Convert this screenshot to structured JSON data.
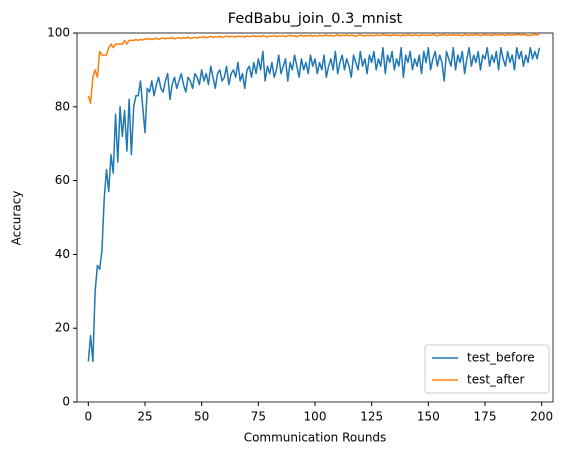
{
  "chart_data": {
    "type": "line",
    "title": "FedBabu_join_0.3_mnist",
    "xlabel": "Communication Rounds",
    "ylabel": "Accuracy",
    "xlim": [
      -5,
      205
    ],
    "ylim": [
      0,
      100
    ],
    "xticks": [
      0,
      25,
      50,
      75,
      100,
      125,
      150,
      175,
      200
    ],
    "yticks": [
      0,
      20,
      40,
      60,
      80,
      100
    ],
    "grid": false,
    "legend_position": "lower right",
    "x": [
      0,
      1,
      2,
      3,
      4,
      5,
      6,
      7,
      8,
      9,
      10,
      11,
      12,
      13,
      14,
      15,
      16,
      17,
      18,
      19,
      20,
      21,
      22,
      23,
      24,
      25,
      26,
      27,
      28,
      29,
      30,
      31,
      32,
      33,
      34,
      35,
      36,
      37,
      38,
      39,
      40,
      41,
      42,
      43,
      44,
      45,
      46,
      47,
      48,
      49,
      50,
      51,
      52,
      53,
      54,
      55,
      56,
      57,
      58,
      59,
      60,
      61,
      62,
      63,
      64,
      65,
      66,
      67,
      68,
      69,
      70,
      71,
      72,
      73,
      74,
      75,
      76,
      77,
      78,
      79,
      80,
      81,
      82,
      83,
      84,
      85,
      86,
      87,
      88,
      89,
      90,
      91,
      92,
      93,
      94,
      95,
      96,
      97,
      98,
      99,
      100,
      101,
      102,
      103,
      104,
      105,
      106,
      107,
      108,
      109,
      110,
      111,
      112,
      113,
      114,
      115,
      116,
      117,
      118,
      119,
      120,
      121,
      122,
      123,
      124,
      125,
      126,
      127,
      128,
      129,
      130,
      131,
      132,
      133,
      134,
      135,
      136,
      137,
      138,
      139,
      140,
      141,
      142,
      143,
      144,
      145,
      146,
      147,
      148,
      149,
      150,
      151,
      152,
      153,
      154,
      155,
      156,
      157,
      158,
      159,
      160,
      161,
      162,
      163,
      164,
      165,
      166,
      167,
      168,
      169,
      170,
      171,
      172,
      173,
      174,
      175,
      176,
      177,
      178,
      179,
      180,
      181,
      182,
      183,
      184,
      185,
      186,
      187,
      188,
      189,
      190,
      191,
      192,
      193,
      194,
      195,
      196,
      197,
      198,
      199
    ],
    "series": [
      {
        "name": "test_before",
        "color": "#1f77b4",
        "values": [
          11,
          18,
          11,
          30,
          37,
          36,
          41,
          55,
          63,
          57,
          67,
          62,
          78,
          65,
          80,
          72,
          79,
          68,
          82,
          67,
          80,
          83,
          83,
          87,
          80,
          73,
          85,
          84,
          87,
          83,
          86,
          88,
          85,
          84,
          87,
          89,
          82,
          86,
          88,
          85,
          87,
          89,
          86,
          84,
          88,
          87,
          85,
          89,
          88,
          86,
          90,
          87,
          89,
          86,
          91,
          88,
          85,
          89,
          90,
          87,
          88,
          91,
          86,
          89,
          90,
          88,
          92,
          87,
          89,
          85,
          90,
          91,
          88,
          92,
          89,
          93,
          90,
          95,
          87,
          91,
          89,
          92,
          88,
          90,
          94,
          89,
          91,
          93,
          87,
          92,
          90,
          94,
          91,
          88,
          93,
          90,
          92,
          89,
          94,
          91,
          93,
          89,
          92,
          90,
          94,
          88,
          91,
          93,
          90,
          95,
          89,
          92,
          94,
          90,
          93,
          91,
          88,
          94,
          92,
          90,
          95,
          91,
          93,
          89,
          94,
          92,
          95,
          90,
          93,
          91,
          96,
          89,
          94,
          92,
          95,
          90,
          93,
          91,
          96,
          88,
          94,
          92,
          95,
          90,
          93,
          91,
          94,
          89,
          95,
          92,
          96,
          90,
          93,
          95,
          91,
          94,
          92,
          87,
          95,
          93,
          91,
          96,
          90,
          94,
          92,
          95,
          89,
          93,
          96,
          91,
          94,
          92,
          95,
          90,
          94,
          93,
          96,
          91,
          94,
          92,
          95,
          90,
          96,
          93,
          91,
          95,
          92,
          94,
          90,
          96,
          93,
          95,
          91,
          94,
          92,
          96,
          93,
          95,
          93,
          96
        ]
      },
      {
        "name": "test_after",
        "color": "#ff7f0e",
        "values": [
          83,
          81,
          88,
          90,
          88,
          95,
          94,
          94,
          94,
          96,
          97,
          96,
          97,
          97,
          97,
          97,
          98,
          97,
          98,
          98,
          98,
          98.2,
          98,
          98.3,
          98.1,
          98.4,
          98.3,
          98.5,
          98.2,
          98.4,
          98.6,
          98.3,
          98.5,
          98.7,
          98.4,
          98.6,
          98.5,
          98.8,
          98.4,
          98.6,
          98.7,
          98.5,
          98.8,
          98.6,
          98.9,
          98.5,
          98.7,
          98.8,
          98.6,
          98.9,
          98.8,
          99,
          98.7,
          98.9,
          99.1,
          98.8,
          99,
          98.9,
          99.1,
          98.8,
          99,
          99.2,
          98.9,
          99.1,
          99,
          98.9,
          99.2,
          99,
          99.1,
          98.9,
          99.2,
          99,
          99.1,
          99.3,
          99,
          99.2,
          99,
          99.3,
          99.1,
          98.9,
          99.2,
          99.1,
          99.3,
          99,
          99.2,
          99.1,
          99.3,
          99,
          99.2,
          99.4,
          99.1,
          99.3,
          99,
          99.2,
          99.4,
          99.1,
          99.3,
          99.2,
          99.4,
          99.1,
          99.3,
          99.1,
          99.4,
          99.2,
          99.3,
          99.5,
          99.2,
          99.4,
          99.1,
          99.3,
          99.5,
          99.2,
          99.4,
          99.3,
          99.5,
          99.2,
          99.4,
          99.3,
          99.1,
          99.4,
          99.5,
          99.3,
          99.2,
          99.4,
          99.3,
          99.4,
          99.2,
          99.5,
          99.3,
          99.4,
          99.6,
          99.3,
          99.5,
          99.2,
          99.4,
          99.5,
          99.3,
          99.4,
          99.2,
          99.5,
          99.3,
          99.6,
          99.4,
          99.3,
          99.5,
          99.4,
          99.2,
          99.5,
          99.4,
          99.3,
          99.5,
          99.3,
          99.6,
          99.4,
          99.2,
          99.5,
          99.4,
          99.6,
          99.3,
          99.5,
          99.4,
          99.6,
          99.3,
          99.5,
          99.4,
          99.2,
          99.6,
          99.5,
          99.3,
          99.5,
          99.4,
          99.6,
          99.5,
          99.3,
          99.5,
          99.6,
          99.4,
          99.5,
          99.3,
          99.6,
          99.5,
          99.4,
          99.6,
          99.5,
          99.3,
          99.6,
          99.5,
          99.4,
          99.6,
          99.5,
          99.7,
          99.4,
          99.6,
          99.5,
          99.3,
          99.4,
          99.5,
          99.6,
          99.5,
          99.6
        ]
      }
    ]
  }
}
